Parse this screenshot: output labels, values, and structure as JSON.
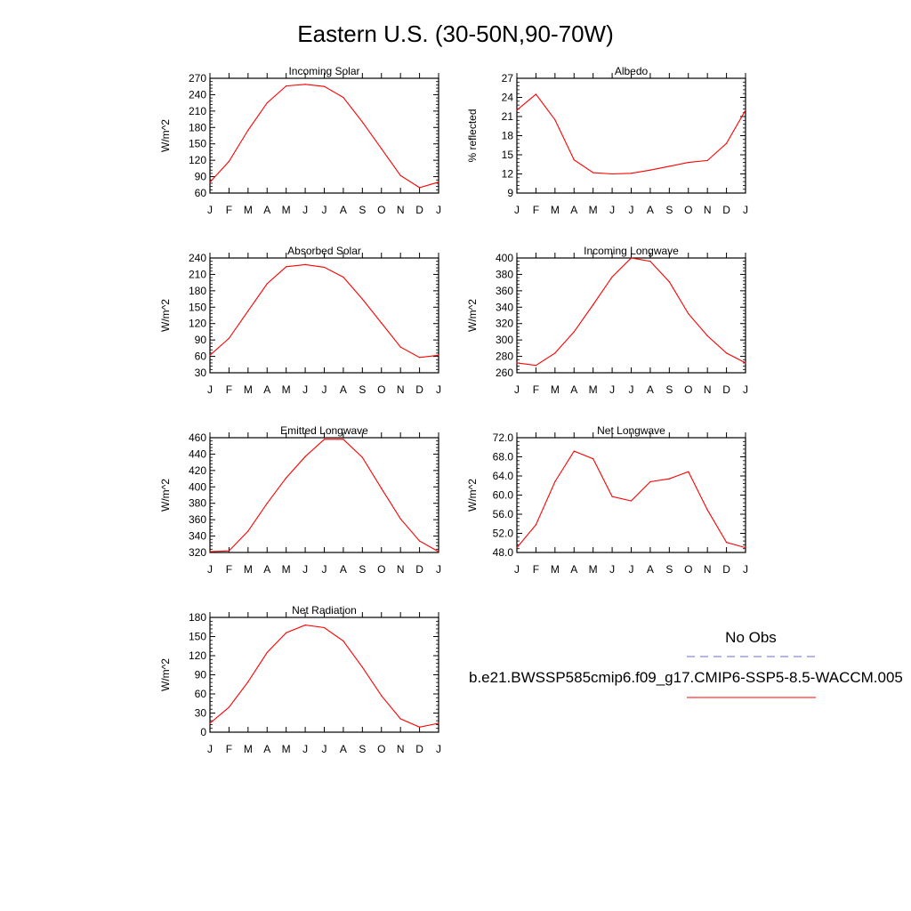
{
  "figure": {
    "title": "Eastern U.S. (30-50N,90-70W)"
  },
  "legend": {
    "obs_label": "No Obs",
    "model_label": "b.e21.BWSSP585cmip6.f09_g17.CMIP6-SSP5-8.5-WACCM.005",
    "obs_color": "#6b6bdd",
    "model_color": "#ff0000"
  },
  "chart_data": [
    {
      "type": "line",
      "title": "Incoming Solar",
      "ylabel": "W/m^2",
      "categories": [
        "J",
        "F",
        "M",
        "A",
        "M",
        "J",
        "J",
        "A",
        "S",
        "O",
        "N",
        "D",
        "J"
      ],
      "ylim": [
        60,
        270
      ],
      "yticks": [
        "60",
        "90",
        "120",
        "150",
        "180",
        "210",
        "240",
        "270"
      ],
      "values": [
        80,
        118,
        175,
        225,
        256,
        259,
        255,
        235,
        190,
        141,
        92,
        70,
        80
      ],
      "line_color": "#ff0000"
    },
    {
      "type": "line",
      "title": "Albedo",
      "ylabel": "% reflected",
      "categories": [
        "J",
        "F",
        "M",
        "A",
        "M",
        "J",
        "J",
        "A",
        "S",
        "O",
        "N",
        "D",
        "J"
      ],
      "ylim": [
        9,
        27
      ],
      "yticks": [
        "9",
        "12",
        "15",
        "18",
        "21",
        "24",
        "27"
      ],
      "values": [
        22.0,
        24.5,
        20.5,
        14.2,
        12.2,
        12.0,
        12.1,
        12.6,
        13.2,
        13.8,
        14.1,
        16.8,
        22.0
      ],
      "line_color": "#ff0000"
    },
    {
      "type": "line",
      "title": "Absorbed Solar",
      "ylabel": "W/m^2",
      "categories": [
        "J",
        "F",
        "M",
        "A",
        "M",
        "J",
        "J",
        "A",
        "S",
        "O",
        "N",
        "D",
        "J"
      ],
      "ylim": [
        30,
        240
      ],
      "yticks": [
        "30",
        "60",
        "90",
        "120",
        "150",
        "180",
        "210",
        "240"
      ],
      "values": [
        62,
        93,
        143,
        193,
        224,
        228,
        223,
        205,
        165,
        121,
        77,
        58,
        62
      ],
      "line_color": "#ff0000"
    },
    {
      "type": "line",
      "title": "Incoming Longwave",
      "ylabel": "W/m^2",
      "categories": [
        "J",
        "F",
        "M",
        "A",
        "M",
        "J",
        "J",
        "A",
        "S",
        "O",
        "N",
        "D",
        "J"
      ],
      "ylim": [
        260,
        400
      ],
      "yticks": [
        "260",
        "280",
        "300",
        "320",
        "340",
        "360",
        "380",
        "400"
      ],
      "values": [
        272,
        269,
        284,
        310,
        343,
        377,
        400,
        396,
        371,
        332,
        305,
        284,
        272
      ],
      "line_color": "#ff0000"
    },
    {
      "type": "line",
      "title": "Emitted Longwave",
      "ylabel": "W/m^2",
      "categories": [
        "J",
        "F",
        "M",
        "A",
        "M",
        "J",
        "J",
        "A",
        "S",
        "O",
        "N",
        "D",
        "J"
      ],
      "ylim": [
        320,
        460
      ],
      "yticks": [
        "320",
        "340",
        "360",
        "380",
        "400",
        "420",
        "440",
        "460"
      ],
      "values": [
        321,
        322,
        346,
        380,
        411,
        437,
        458,
        458,
        436,
        398,
        361,
        334,
        321
      ],
      "line_color": "#ff0000"
    },
    {
      "type": "line",
      "title": "Net Longwave",
      "ylabel": "W/m^2",
      "categories": [
        "J",
        "F",
        "M",
        "A",
        "M",
        "J",
        "J",
        "A",
        "S",
        "O",
        "N",
        "D",
        "J"
      ],
      "ylim": [
        48,
        72
      ],
      "yticks": [
        "48.0",
        "52.0",
        "56.0",
        "60.0",
        "64.0",
        "68.0",
        "72.0"
      ],
      "values": [
        49.0,
        53.8,
        62.8,
        69.2,
        67.6,
        59.7,
        58.8,
        62.8,
        63.4,
        64.9,
        56.9,
        50.1,
        49.0
      ],
      "line_color": "#ff0000"
    },
    {
      "type": "line",
      "title": "Net Radiation",
      "ylabel": "W/m^2",
      "categories": [
        "J",
        "F",
        "M",
        "A",
        "M",
        "J",
        "J",
        "A",
        "S",
        "O",
        "N",
        "D",
        "J"
      ],
      "ylim": [
        0,
        180
      ],
      "yticks": [
        "0",
        "30",
        "60",
        "90",
        "120",
        "150",
        "180"
      ],
      "values": [
        14,
        39,
        79,
        125,
        156,
        168,
        164,
        143,
        102,
        57,
        21,
        8,
        14
      ],
      "line_color": "#ff0000"
    }
  ]
}
